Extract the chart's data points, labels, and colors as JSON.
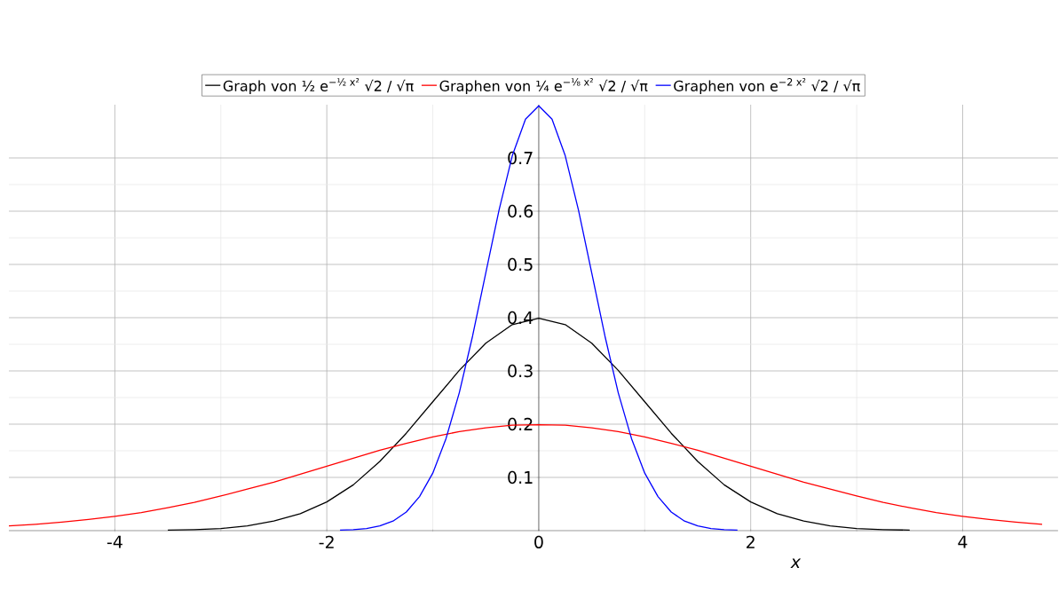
{
  "chart_data": {
    "type": "line",
    "xlabel": "x",
    "xlim": [
      -5,
      4.9
    ],
    "ylim": [
      0,
      0.8
    ],
    "xticks": [
      -4,
      -2,
      0,
      2,
      4
    ],
    "yticks": [
      0.1,
      0.2,
      0.3,
      0.4,
      0.5,
      0.6,
      0.7
    ],
    "grid": true,
    "legend": "top",
    "marker": "none",
    "line_style": "solid",
    "series": [
      {
        "name": "Graph von ½ e$^{−½ x²}$ √2 / √π",
        "color": "#000000",
        "x": [
          -3.5,
          -3.25,
          -3,
          -2.75,
          -2.5,
          -2.25,
          -2,
          -1.75,
          -1.5,
          -1.25,
          -1,
          -0.75,
          -0.5,
          -0.25,
          0,
          0.25,
          0.5,
          0.75,
          1,
          1.25,
          1.5,
          1.75,
          2,
          2.25,
          2.5,
          2.75,
          3,
          3.25,
          3.5
        ],
        "values": [
          0.001,
          0.002,
          0.004,
          0.009,
          0.018,
          0.032,
          0.054,
          0.086,
          0.13,
          0.183,
          0.242,
          0.301,
          0.352,
          0.387,
          0.399,
          0.387,
          0.352,
          0.301,
          0.242,
          0.183,
          0.13,
          0.086,
          0.054,
          0.032,
          0.018,
          0.009,
          0.004,
          0.002,
          0.001
        ]
      },
      {
        "name": "Graphen von ¼ e$^{−⅛ x²}$ √2 / √π",
        "color": "#ff0000",
        "x": [
          -5,
          -4.75,
          -4.5,
          -4.25,
          -4,
          -3.75,
          -3.5,
          -3.25,
          -3,
          -2.75,
          -2.5,
          -2.25,
          -2,
          -1.75,
          -1.5,
          -1.25,
          -1,
          -0.75,
          -0.5,
          -0.25,
          0,
          0.25,
          0.5,
          0.75,
          1,
          1.25,
          1.5,
          1.75,
          2,
          2.25,
          2.5,
          2.75,
          3,
          3.25,
          3.5,
          3.75,
          4,
          4.25,
          4.5,
          4.75
        ],
        "values": [
          0.009,
          0.012,
          0.016,
          0.021,
          0.027,
          0.034,
          0.043,
          0.053,
          0.065,
          0.078,
          0.091,
          0.106,
          0.121,
          0.136,
          0.151,
          0.164,
          0.176,
          0.186,
          0.193,
          0.198,
          0.199,
          0.198,
          0.193,
          0.186,
          0.176,
          0.164,
          0.151,
          0.136,
          0.121,
          0.106,
          0.091,
          0.078,
          0.065,
          0.053,
          0.043,
          0.034,
          0.027,
          0.021,
          0.016,
          0.012
        ]
      },
      {
        "name": "Graphen von e$^{−2 x²}$ √2 / √π",
        "color": "#0000ff",
        "x": [
          -1.875,
          -1.75,
          -1.625,
          -1.5,
          -1.375,
          -1.25,
          -1.125,
          -1,
          -0.875,
          -0.75,
          -0.625,
          -0.5,
          -0.375,
          -0.25,
          -0.125,
          0,
          0.125,
          0.25,
          0.375,
          0.5,
          0.625,
          0.75,
          0.875,
          1,
          1.125,
          1.25,
          1.375,
          1.5,
          1.625,
          1.75,
          1.875
        ],
        "values": [
          0.001,
          0.002,
          0.004,
          0.009,
          0.018,
          0.035,
          0.064,
          0.108,
          0.173,
          0.259,
          0.365,
          0.484,
          0.602,
          0.704,
          0.773,
          0.798,
          0.773,
          0.704,
          0.602,
          0.484,
          0.365,
          0.259,
          0.173,
          0.108,
          0.064,
          0.035,
          0.018,
          0.009,
          0.004,
          0.002,
          0.001
        ]
      }
    ]
  }
}
